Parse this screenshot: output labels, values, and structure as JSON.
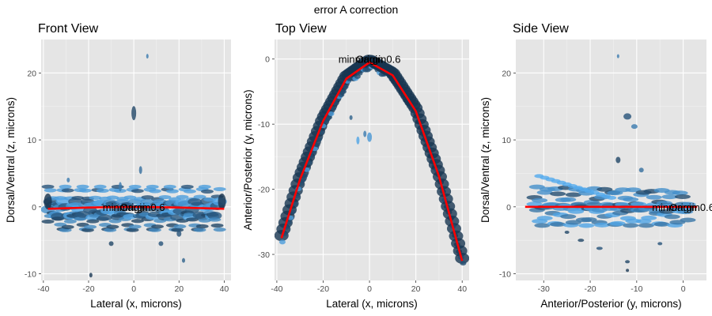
{
  "figure": {
    "title": "error A correction"
  },
  "colors": {
    "panel_bg": "#e5e5e5",
    "grid_major": "#ffffff",
    "point_dark": "#132b43",
    "point_light": "#56b1f7",
    "fit_line": "#ff0000",
    "tick_text": "#4d4d4d"
  },
  "chart_data": [
    {
      "type": "scatter",
      "title": "Front View",
      "xlabel": "Lateral (x, microns)",
      "ylabel": "Dorsal/Ventral (z, microns)",
      "xlim": [
        -41,
        43
      ],
      "ylim": [
        -11,
        25
      ],
      "x_ticks": [
        -40,
        -20,
        0,
        20,
        40
      ],
      "y_ticks": [
        -10,
        0,
        10,
        20
      ],
      "x_tick_labels": [
        "-40",
        "-20",
        "0",
        "20",
        "40"
      ],
      "y_tick_labels": [
        "-10",
        "0",
        "10",
        "20"
      ],
      "fit_line": {
        "x": [
          -38,
          -20,
          0,
          20,
          40
        ],
        "y": [
          -0.3,
          -0.1,
          0,
          -0.1,
          -0.3
        ]
      },
      "annotations": [
        {
          "text": "minmargin0.6",
          "x": 0,
          "y": 0
        },
        {
          "text": "Origin",
          "x": 0,
          "y": 0
        }
      ],
      "grid": true,
      "point_color_scale": [
        "#132b43",
        "#56b1f7"
      ]
    },
    {
      "type": "scatter",
      "title": "Top View",
      "xlabel": "Lateral (x, microns)",
      "ylabel": "Anterior/Posterior (y, microns)",
      "xlim": [
        -41,
        43
      ],
      "ylim": [
        -34,
        3
      ],
      "x_ticks": [
        -40,
        -20,
        0,
        20,
        40
      ],
      "y_ticks": [
        0,
        -10,
        -20,
        -30
      ],
      "x_tick_labels": [
        "-40",
        "-20",
        "0",
        "20",
        "40"
      ],
      "y_tick_labels": [
        "0",
        "-10",
        "-20",
        "-30"
      ],
      "fit_line": {
        "x": [
          -38,
          -30,
          -20,
          -10,
          0,
          10,
          20,
          30,
          40
        ],
        "y": [
          -27.5,
          -18.5,
          -9.5,
          -3,
          -0.5,
          -2.5,
          -8,
          -18,
          -31
        ]
      },
      "annotations": [
        {
          "text": "minmargin0.6",
          "x": 0,
          "y": 0
        },
        {
          "text": "Origin",
          "x": 0,
          "y": 0
        }
      ],
      "grid": true,
      "point_color_scale": [
        "#132b43",
        "#56b1f7"
      ]
    },
    {
      "type": "scatter",
      "title": "Side View",
      "xlabel": "Anterior/Posterior (y, microns)",
      "ylabel": "Dorsal/Ventral (z, microns)",
      "xlim": [
        -36,
        5
      ],
      "ylim": [
        -11,
        25
      ],
      "x_ticks": [
        -30,
        -20,
        -10,
        0
      ],
      "y_ticks": [
        -10,
        0,
        10,
        20
      ],
      "x_tick_labels": [
        "-30",
        "-20",
        "-10",
        "0"
      ],
      "y_tick_labels": [
        "-10",
        "0",
        "10",
        "20"
      ],
      "fit_line": {
        "x": [
          -34,
          3
        ],
        "y": [
          0,
          0
        ]
      },
      "annotations": [
        {
          "text": "minmargin0.6",
          "x": 0,
          "y": 0
        },
        {
          "text": "Origin",
          "x": 0,
          "y": 0
        }
      ],
      "grid": true,
      "point_color_scale": [
        "#132b43",
        "#56b1f7"
      ]
    }
  ]
}
